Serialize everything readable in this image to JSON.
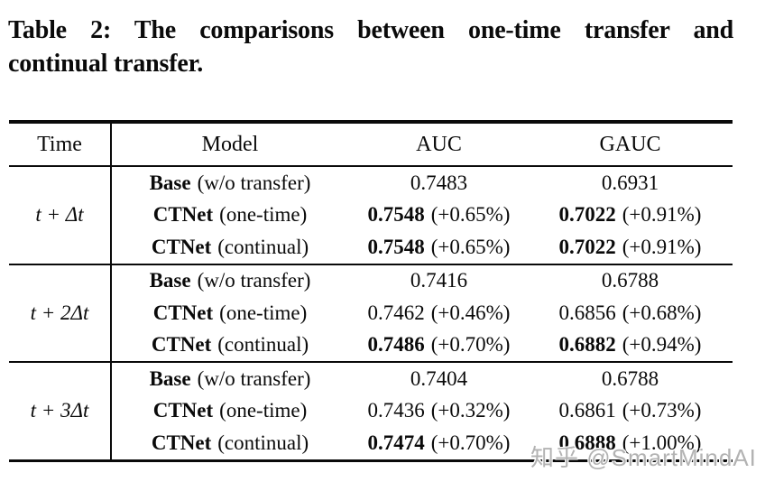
{
  "caption": {
    "line1": "Table 2: The comparisons between one-time transfer and",
    "line2": "continual transfer."
  },
  "table": {
    "columns": [
      "Time",
      "Model",
      "AUC",
      "GAUC"
    ],
    "groups": [
      {
        "time": "t + Δt",
        "rows": [
          {
            "model": {
              "name": "Base",
              "note": "(w/o transfer)"
            },
            "auc": {
              "value": "0.7483",
              "delta": ""
            },
            "gauc": {
              "value": "0.6931",
              "delta": ""
            }
          },
          {
            "model": {
              "name": "CTNet",
              "note": "(one-time)"
            },
            "auc": {
              "value": "0.7548",
              "delta": "(+0.65%)"
            },
            "gauc": {
              "value": "0.7022",
              "delta": "(+0.91%)"
            }
          },
          {
            "model": {
              "name": "CTNet",
              "note": "(continual)"
            },
            "auc": {
              "value": "0.7548",
              "delta": "(+0.65%)"
            },
            "gauc": {
              "value": "0.7022",
              "delta": "(+0.91%)"
            }
          }
        ]
      },
      {
        "time": "t + 2Δt",
        "rows": [
          {
            "model": {
              "name": "Base",
              "note": "(w/o transfer)"
            },
            "auc": {
              "value": "0.7416",
              "delta": ""
            },
            "gauc": {
              "value": "0.6788",
              "delta": ""
            }
          },
          {
            "model": {
              "name": "CTNet",
              "note": "(one-time)"
            },
            "auc": {
              "value": "0.7462",
              "delta": "(+0.46%)"
            },
            "gauc": {
              "value": "0.6856",
              "delta": "(+0.68%)"
            }
          },
          {
            "model": {
              "name": "CTNet",
              "note": "(continual)"
            },
            "auc": {
              "value": "0.7486",
              "delta": "(+0.70%)"
            },
            "gauc": {
              "value": "0.6882",
              "delta": "(+0.94%)"
            }
          }
        ]
      },
      {
        "time": "t + 3Δt",
        "rows": [
          {
            "model": {
              "name": "Base",
              "note": "(w/o transfer)"
            },
            "auc": {
              "value": "0.7404",
              "delta": ""
            },
            "gauc": {
              "value": "0.6788",
              "delta": ""
            }
          },
          {
            "model": {
              "name": "CTNet",
              "note": "(one-time)"
            },
            "auc": {
              "value": "0.7436",
              "delta": "(+0.32%)"
            },
            "gauc": {
              "value": "0.6861",
              "delta": "(+0.73%)"
            }
          },
          {
            "model": {
              "name": "CTNet",
              "note": "(continual)"
            },
            "auc": {
              "value": "0.7474",
              "delta": "(+0.70%)"
            },
            "gauc": {
              "value": "0.6888",
              "delta": "(+1.00%)"
            }
          }
        ]
      }
    ]
  },
  "watermark": {
    "text": "知乎 @SmartMindAI"
  },
  "colors": {
    "text": "#0a0a0a",
    "rule": "#0a0a0a",
    "watermark": "#b3b3b3",
    "background": "#ffffff"
  }
}
